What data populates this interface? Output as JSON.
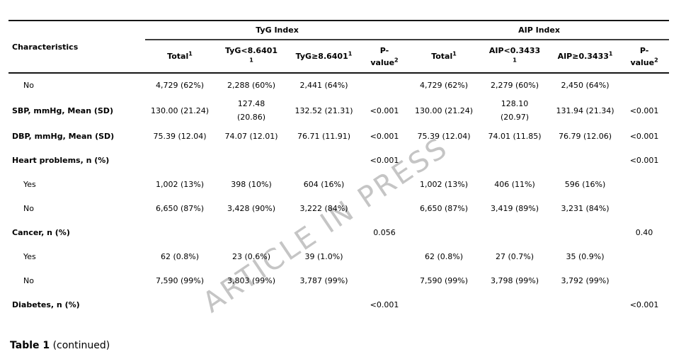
{
  "watermark": "ARTICLE IN PRESS",
  "table": {
    "characteristics_header": "Characteristics",
    "groups": [
      {
        "label": "TyG Index"
      },
      {
        "label": "AIP Index"
      }
    ],
    "subheaders": {
      "tyg_total": {
        "text": "Total",
        "sup": "1"
      },
      "tyg_low": {
        "line1": "TyG<8.6401",
        "sup": "1"
      },
      "tyg_high": {
        "text": "TyG≥8.6401",
        "sup": "1"
      },
      "tyg_p": {
        "line1": "P-",
        "line2": "value",
        "sup": "2"
      },
      "aip_total": {
        "text": "Total",
        "sup": "1"
      },
      "aip_low": {
        "line1": "AIP<0.3433",
        "sup": "1"
      },
      "aip_high": {
        "text": "AIP≥0.3433",
        "sup": "1"
      },
      "aip_p": {
        "line1": "P-",
        "line2": "value",
        "sup": "2"
      }
    },
    "rows": [
      {
        "label": "No",
        "style": "sub",
        "cells": [
          "4,729 (62%)",
          "2,288 (60%)",
          "2,441 (64%)",
          "",
          "4,729 (62%)",
          "2,279 (60%)",
          "2,450 (64%)",
          ""
        ]
      },
      {
        "label": "SBP, mmHg, Mean (SD)",
        "style": "bold",
        "cells": [
          "130.00 (21.24)",
          "127.48\n(20.86)",
          "132.52 (21.31)",
          "<0.001",
          "130.00 (21.24)",
          "128.10\n(20.97)",
          "131.94 (21.34)",
          "<0.001"
        ]
      },
      {
        "label": "DBP, mmHg, Mean (SD)",
        "style": "bold",
        "cells": [
          "75.39 (12.04)",
          "74.07 (12.01)",
          "76.71 (11.91)",
          "<0.001",
          "75.39 (12.04)",
          "74.01 (11.85)",
          "76.79 (12.06)",
          "<0.001"
        ]
      },
      {
        "label": "Heart problems, n (%)",
        "style": "bold",
        "cells": [
          "",
          "",
          "",
          "<0.001",
          "",
          "",
          "",
          "<0.001"
        ]
      },
      {
        "label": "Yes",
        "style": "sub",
        "cells": [
          "1,002 (13%)",
          "398 (10%)",
          "604 (16%)",
          "",
          "1,002 (13%)",
          "406 (11%)",
          "596 (16%)",
          ""
        ]
      },
      {
        "label": "No",
        "style": "sub",
        "cells": [
          "6,650 (87%)",
          "3,428 (90%)",
          "3,222 (84%)",
          "",
          "6,650 (87%)",
          "3,419 (89%)",
          "3,231 (84%)",
          ""
        ]
      },
      {
        "label": "Cancer, n (%)",
        "style": "bold",
        "cells": [
          "",
          "",
          "",
          "0.056",
          "",
          "",
          "",
          "0.40"
        ]
      },
      {
        "label": "Yes",
        "style": "sub",
        "cells": [
          "62 (0.8%)",
          "23 (0.6%)",
          "39 (1.0%)",
          "",
          "62 (0.8%)",
          "27 (0.7%)",
          "35 (0.9%)",
          ""
        ]
      },
      {
        "label": "No",
        "style": "sub",
        "cells": [
          "7,590 (99%)",
          "3,803 (99%)",
          "3,787 (99%)",
          "",
          "7,590 (99%)",
          "3,798 (99%)",
          "3,792 (99%)",
          ""
        ]
      },
      {
        "label": "Diabetes, n (%)",
        "style": "bold",
        "cells": [
          "",
          "",
          "",
          "<0.001",
          "",
          "",
          "",
          "<0.001"
        ]
      }
    ]
  },
  "footer": {
    "title": "Table 1",
    "note": "(continued)"
  }
}
